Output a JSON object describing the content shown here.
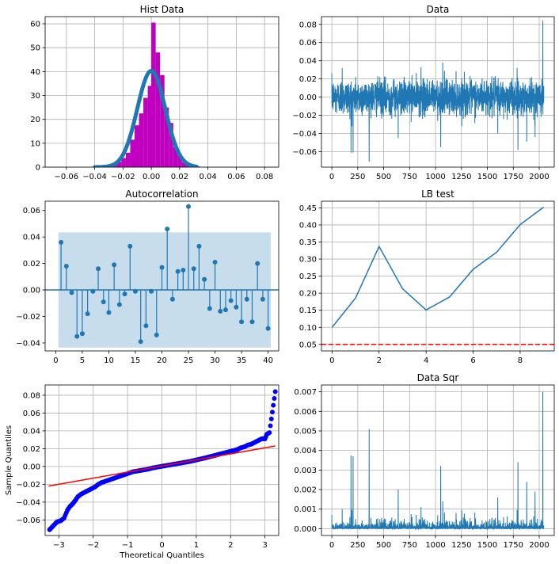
{
  "figure": {
    "background": "#ffffff"
  },
  "colors": {
    "blue": "#1f77b4",
    "magenta": "#bf00bf",
    "red": "#ff0000",
    "qq_points": "#0000ff",
    "band": "#1f77b4"
  },
  "chart_data": [
    {
      "id": "hist",
      "type": "bar",
      "title": "Hist Data",
      "xlim": [
        -0.075,
        0.09
      ],
      "ylim": [
        0,
        63
      ],
      "xticks": [
        -0.06,
        -0.04,
        -0.02,
        0.0,
        0.02,
        0.04,
        0.06,
        0.08
      ],
      "xtick_labels": [
        "−0.06",
        "−0.04",
        "−0.02",
        "0.00",
        "0.02",
        "0.04",
        "0.06",
        "0.08"
      ],
      "yticks": [
        0,
        10,
        20,
        30,
        40,
        50,
        60
      ],
      "ytick_labels": [
        "0",
        "10",
        "20",
        "30",
        "40",
        "50",
        "60"
      ],
      "grid": true,
      "bin_width": 0.0031,
      "bins": [
        {
          "x": -0.0366,
          "h": 0.2
        },
        {
          "x": -0.0335,
          "h": 0.4
        },
        {
          "x": -0.0304,
          "h": 0.8
        },
        {
          "x": -0.0273,
          "h": 1.4
        },
        {
          "x": -0.0242,
          "h": 2.2
        },
        {
          "x": -0.0211,
          "h": 3.8
        },
        {
          "x": -0.018,
          "h": 6.0
        },
        {
          "x": -0.0149,
          "h": 11.5
        },
        {
          "x": -0.0118,
          "h": 17.5
        },
        {
          "x": -0.0087,
          "h": 22.5
        },
        {
          "x": -0.0056,
          "h": 29.0
        },
        {
          "x": -0.0025,
          "h": 34.0
        },
        {
          "x": 0.0,
          "h": 60.5
        },
        {
          "x": 0.0031,
          "h": 48.0
        },
        {
          "x": 0.0062,
          "h": 38.5
        },
        {
          "x": 0.0093,
          "h": 25.0
        },
        {
          "x": 0.0124,
          "h": 18.5
        },
        {
          "x": 0.0155,
          "h": 8.5
        },
        {
          "x": 0.0186,
          "h": 5.0
        },
        {
          "x": 0.0217,
          "h": 2.0
        },
        {
          "x": 0.0248,
          "h": 1.0
        },
        {
          "x": 0.0279,
          "h": 0.5
        },
        {
          "x": 0.031,
          "h": 0.3
        }
      ],
      "normal_fit": {
        "mean": 0.0,
        "std": 0.0099
      }
    },
    {
      "id": "data",
      "type": "line",
      "title": "Data",
      "xlim": [
        -100,
        2145
      ],
      "ylim": [
        -0.077,
        0.0885
      ],
      "xticks": [
        0,
        250,
        500,
        750,
        1000,
        1250,
        1500,
        1750,
        2000
      ],
      "xtick_labels": [
        "0",
        "250",
        "500",
        "750",
        "1000",
        "1250",
        "1500",
        "1750",
        "2000"
      ],
      "yticks": [
        -0.06,
        -0.04,
        -0.02,
        0.0,
        0.02,
        0.04,
        0.06,
        0.08
      ],
      "ytick_labels": [
        "−0.06",
        "−0.04",
        "−0.02",
        "0.00",
        "0.02",
        "0.04",
        "0.06",
        "0.08"
      ],
      "grid": true,
      "n": 2045,
      "spikes": [
        {
          "x": 185,
          "y": -0.061
        },
        {
          "x": 205,
          "y": -0.061
        },
        {
          "x": 360,
          "y": -0.071
        },
        {
          "x": 1795,
          "y": -0.058
        },
        {
          "x": 2035,
          "y": 0.084
        },
        {
          "x": 2045,
          "y": 0.03
        },
        {
          "x": 1050,
          "y": -0.055
        },
        {
          "x": 640,
          "y": -0.045
        },
        {
          "x": 1070,
          "y": 0.038
        },
        {
          "x": 100,
          "y": 0.032
        },
        {
          "x": 1880,
          "y": -0.049
        },
        {
          "x": 1960,
          "y": -0.044
        },
        {
          "x": 1600,
          "y": -0.04
        },
        {
          "x": 860,
          "y": 0.033
        }
      ]
    },
    {
      "id": "acf",
      "type": "stem",
      "title": "Autocorrelation",
      "xlim": [
        -2,
        42
      ],
      "ylim": [
        -0.046,
        0.067
      ],
      "xticks": [
        0,
        5,
        10,
        15,
        20,
        25,
        30,
        35,
        40
      ],
      "xtick_labels": [
        "0",
        "5",
        "10",
        "15",
        "20",
        "25",
        "30",
        "35",
        "40"
      ],
      "yticks": [
        -0.04,
        -0.02,
        0.0,
        0.02,
        0.04,
        0.06
      ],
      "ytick_labels": [
        "−0.04",
        "−0.02",
        "0.00",
        "0.02",
        "0.04",
        "0.06"
      ],
      "grid": false,
      "confidence": 0.0435,
      "lags": [
        1,
        2,
        3,
        4,
        5,
        6,
        7,
        8,
        9,
        10,
        11,
        12,
        13,
        14,
        15,
        16,
        17,
        18,
        19,
        20,
        21,
        22,
        23,
        24,
        25,
        26,
        27,
        28,
        29,
        30,
        31,
        32,
        33,
        34,
        35,
        36,
        37,
        38,
        39,
        40
      ],
      "values": [
        0.036,
        0.018,
        -0.002,
        -0.035,
        -0.033,
        -0.018,
        -0.001,
        0.016,
        -0.009,
        -0.017,
        0.019,
        -0.011,
        -0.003,
        0.033,
        -0.001,
        -0.039,
        -0.027,
        -0.001,
        -0.034,
        0.017,
        0.046,
        -0.007,
        0.014,
        0.015,
        0.063,
        0.016,
        0.033,
        0.008,
        -0.014,
        0.021,
        -0.016,
        -0.015,
        -0.008,
        -0.013,
        -0.024,
        -0.007,
        -0.024,
        0.02,
        -0.007,
        -0.029
      ]
    },
    {
      "id": "lb",
      "type": "line",
      "title": "LB test",
      "xlim": [
        -0.45,
        9.45
      ],
      "ylim": [
        0.031,
        0.4695
      ],
      "xticks": [
        0,
        2,
        4,
        6,
        8
      ],
      "xtick_labels": [
        "0",
        "2",
        "4",
        "6",
        "8"
      ],
      "yticks": [
        0.05,
        0.1,
        0.15,
        0.2,
        0.25,
        0.3,
        0.35,
        0.4,
        0.45
      ],
      "ytick_labels": [
        "0.05",
        "0.10",
        "0.15",
        "0.20",
        "0.25",
        "0.30",
        "0.35",
        "0.40",
        "0.45"
      ],
      "grid": true,
      "x": [
        0,
        1,
        2,
        3,
        4,
        5,
        6,
        7,
        8,
        9
      ],
      "y": [
        0.1,
        0.186,
        0.337,
        0.213,
        0.151,
        0.189,
        0.27,
        0.32,
        0.401,
        0.452
      ],
      "hline": 0.05
    },
    {
      "id": "qq",
      "type": "scatter",
      "title": "",
      "xlabel": "Theoretical Quantiles",
      "ylabel": "Sample Quantiles",
      "xlim": [
        -3.4,
        3.4
      ],
      "ylim": [
        -0.0775,
        0.0915
      ],
      "xticks": [
        -3,
        -2,
        -1,
        0,
        1,
        2,
        3
      ],
      "xtick_labels": [
        "−3",
        "−2",
        "−1",
        "0",
        "1",
        "2",
        "3"
      ],
      "yticks": [
        -0.06,
        -0.04,
        -0.02,
        0.0,
        0.02,
        0.04,
        0.06,
        0.08
      ],
      "ytick_labels": [
        "−0.06",
        "−0.04",
        "−0.02",
        "0.00",
        "0.02",
        "0.04",
        "0.06",
        "0.08"
      ],
      "grid": true,
      "points": [
        [
          -3.27,
          -0.071
        ],
        [
          -3.05,
          -0.062
        ],
        [
          -2.95,
          -0.061
        ],
        [
          -2.85,
          -0.058
        ],
        [
          -2.75,
          -0.049
        ],
        [
          -2.68,
          -0.045
        ],
        [
          -2.6,
          -0.042
        ],
        [
          -2.52,
          -0.038
        ],
        [
          -2.45,
          -0.034
        ],
        [
          -2.35,
          -0.031
        ],
        [
          -2.25,
          -0.029
        ],
        [
          -2.15,
          -0.027
        ],
        [
          -2.05,
          -0.025
        ],
        [
          -1.95,
          -0.023
        ],
        [
          -1.85,
          -0.02
        ],
        [
          -1.75,
          -0.018
        ],
        [
          -1.6,
          -0.016
        ],
        [
          -1.45,
          -0.014
        ],
        [
          -1.3,
          -0.012
        ],
        [
          -1.15,
          -0.01
        ],
        [
          -1.0,
          -0.008
        ],
        [
          -0.85,
          -0.006
        ],
        [
          -0.7,
          -0.005
        ],
        [
          -0.55,
          -0.004
        ],
        [
          -0.4,
          -0.003
        ],
        [
          -0.25,
          -0.0015
        ],
        [
          -0.1,
          -0.0005
        ],
        [
          0.05,
          0.0005
        ],
        [
          0.2,
          0.0015
        ],
        [
          0.35,
          0.0025
        ],
        [
          0.5,
          0.0035
        ],
        [
          0.65,
          0.0045
        ],
        [
          0.8,
          0.0055
        ],
        [
          0.95,
          0.0068
        ],
        [
          1.1,
          0.0082
        ],
        [
          1.25,
          0.0095
        ],
        [
          1.4,
          0.011
        ],
        [
          1.55,
          0.0125
        ],
        [
          1.7,
          0.014
        ],
        [
          1.85,
          0.0155
        ],
        [
          2.0,
          0.017
        ],
        [
          2.1,
          0.018
        ],
        [
          2.2,
          0.019
        ],
        [
          2.3,
          0.021
        ],
        [
          2.4,
          0.022
        ],
        [
          2.5,
          0.024
        ],
        [
          2.6,
          0.025
        ],
        [
          2.7,
          0.027
        ],
        [
          2.8,
          0.029
        ],
        [
          2.9,
          0.031
        ],
        [
          3.0,
          0.031
        ],
        [
          3.05,
          0.036
        ],
        [
          3.13,
          0.038
        ],
        [
          3.3,
          0.084
        ]
      ],
      "line": {
        "x": [
          -3.3,
          3.3
        ],
        "y": [
          -0.022,
          0.023
        ]
      }
    },
    {
      "id": "sqr",
      "type": "line",
      "title": "Data Sqr",
      "xlim": [
        -100,
        2145
      ],
      "ylim": [
        -0.00035,
        0.00735
      ],
      "xticks": [
        0,
        250,
        500,
        750,
        1000,
        1250,
        1500,
        1750,
        2000
      ],
      "xtick_labels": [
        "0",
        "250",
        "500",
        "750",
        "1000",
        "1250",
        "1500",
        "1750",
        "2000"
      ],
      "yticks": [
        0.0,
        0.001,
        0.002,
        0.003,
        0.004,
        0.005,
        0.006,
        0.007
      ],
      "ytick_labels": [
        "0.000",
        "0.001",
        "0.002",
        "0.003",
        "0.004",
        "0.005",
        "0.006",
        "0.007"
      ],
      "grid": true,
      "n": 2045,
      "spikes": [
        {
          "x": 185,
          "y": 0.00375
        },
        {
          "x": 205,
          "y": 0.0037
        },
        {
          "x": 360,
          "y": 0.0051
        },
        {
          "x": 640,
          "y": 0.002
        },
        {
          "x": 1050,
          "y": 0.0032
        },
        {
          "x": 1070,
          "y": 0.0014
        },
        {
          "x": 100,
          "y": 0.001
        },
        {
          "x": 860,
          "y": 0.0011
        },
        {
          "x": 1600,
          "y": 0.0016
        },
        {
          "x": 1795,
          "y": 0.0034
        },
        {
          "x": 1880,
          "y": 0.0024
        },
        {
          "x": 1960,
          "y": 0.0019
        },
        {
          "x": 2035,
          "y": 0.007
        },
        {
          "x": 2045,
          "y": 0.0009
        }
      ]
    }
  ]
}
